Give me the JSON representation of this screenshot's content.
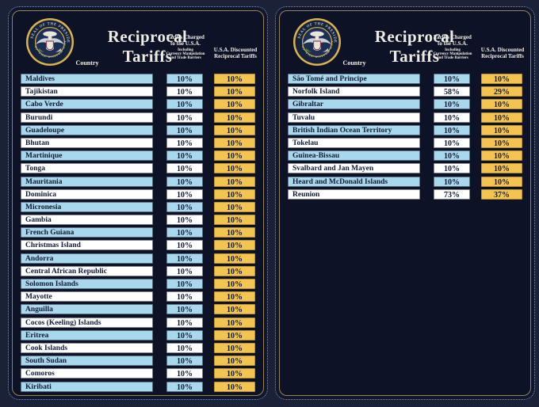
{
  "title": "Reciprocal Tariffs",
  "columns": {
    "country": "Country",
    "charged_line1": "Tariffs Charged",
    "charged_line2": "to the U.S.A.",
    "charged_sub1": "Including",
    "charged_sub2": "Currency Manipulation",
    "charged_sub3": "and Trade Barriers",
    "discounted_line1": "U.S.A. Discounted",
    "discounted_line2": "Reciprocal Tariffs"
  },
  "seal_text_top": "SEAL OF THE PRESIDENT",
  "seal_text_bottom": "OF THE UNITED STATES",
  "colors": {
    "bg": "#1b2136",
    "panel_mid": "#11162c",
    "panel_bg": "#0e1226",
    "border_dot": "#7b9cc4",
    "border_inner": "#94835a",
    "row_blue": "#a9d7ec",
    "row_white": "#ffffff",
    "gold": "#f3c44f",
    "text_dark": "#111a33",
    "title_color": "#eceae2",
    "seal_gold": "#d9b34c"
  },
  "chart_data": [
    {
      "type": "table",
      "title": "Reciprocal Tariffs",
      "columns": [
        "Country",
        "Tariffs Charged to the U.S.A. Including Currency Manipulation and Trade Barriers",
        "U.S.A. Discounted Reciprocal Tariffs"
      ],
      "rows": [
        [
          "Maldives",
          "10%",
          "10%"
        ],
        [
          "Tajikistan",
          "10%",
          "10%"
        ],
        [
          "Cabo Verde",
          "10%",
          "10%"
        ],
        [
          "Burundi",
          "10%",
          "10%"
        ],
        [
          "Guadeloupe",
          "10%",
          "10%"
        ],
        [
          "Bhutan",
          "10%",
          "10%"
        ],
        [
          "Martinique",
          "10%",
          "10%"
        ],
        [
          "Tonga",
          "10%",
          "10%"
        ],
        [
          "Mauritania",
          "10%",
          "10%"
        ],
        [
          "Dominica",
          "10%",
          "10%"
        ],
        [
          "Micronesia",
          "10%",
          "10%"
        ],
        [
          "Gambia",
          "10%",
          "10%"
        ],
        [
          "French Guiana",
          "10%",
          "10%"
        ],
        [
          "Christmas Island",
          "10%",
          "10%"
        ],
        [
          "Andorra",
          "10%",
          "10%"
        ],
        [
          "Central African Republic",
          "10%",
          "10%"
        ],
        [
          "Solomon Islands",
          "10%",
          "10%"
        ],
        [
          "Mayotte",
          "10%",
          "10%"
        ],
        [
          "Anguilla",
          "10%",
          "10%"
        ],
        [
          "Cocos (Keeling) Islands",
          "10%",
          "10%"
        ],
        [
          "Eritrea",
          "10%",
          "10%"
        ],
        [
          "Cook Islands",
          "10%",
          "10%"
        ],
        [
          "South Sudan",
          "10%",
          "10%"
        ],
        [
          "Comoros",
          "10%",
          "10%"
        ],
        [
          "Kiribati",
          "10%",
          "10%"
        ]
      ]
    },
    {
      "type": "table",
      "title": "Reciprocal Tariffs",
      "columns": [
        "Country",
        "Tariffs Charged to the U.S.A. Including Currency Manipulation and Trade Barriers",
        "U.S.A. Discounted Reciprocal Tariffs"
      ],
      "rows": [
        [
          "São Tomé and Principe",
          "10%",
          "10%"
        ],
        [
          "Norfolk Island",
          "58%",
          "29%"
        ],
        [
          "Gibraltar",
          "10%",
          "10%"
        ],
        [
          "Tuvalu",
          "10%",
          "10%"
        ],
        [
          "British Indian Ocean Territory",
          "10%",
          "10%"
        ],
        [
          "Tokelau",
          "10%",
          "10%"
        ],
        [
          "Guinea-Bissau",
          "10%",
          "10%"
        ],
        [
          "Svalbard and Jan Mayen",
          "10%",
          "10%"
        ],
        [
          "Heard and McDonald Islands",
          "10%",
          "10%"
        ],
        [
          "Reunion",
          "73%",
          "37%"
        ]
      ]
    }
  ]
}
